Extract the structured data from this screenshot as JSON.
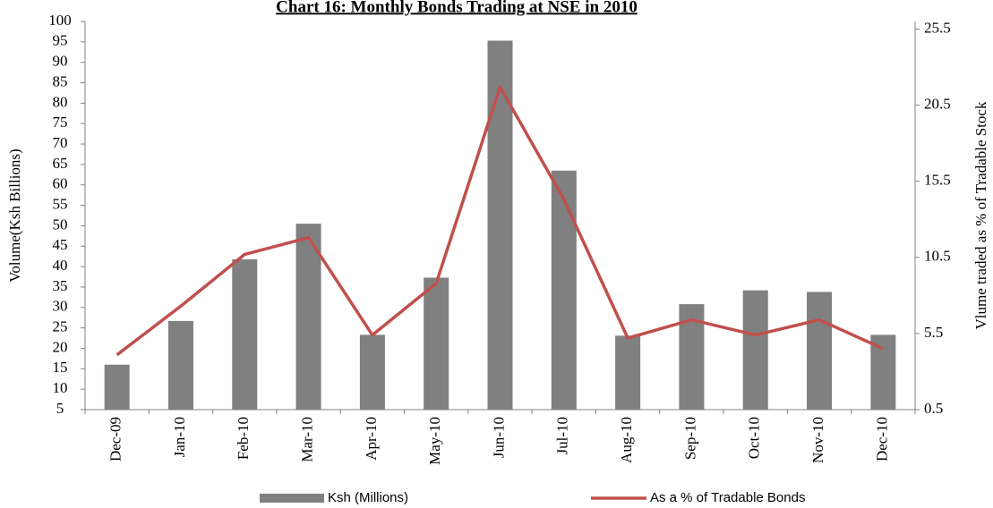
{
  "chart_data": {
    "type": "bar_line",
    "title": "Chart 16: Monthly Bonds Trading at  NSE in 2010",
    "y_label": "Volume(Ksh Billions)",
    "y2_label": "Vlume traded as % of Tradable Stock",
    "categories": [
      "Dec-09",
      "Jan-10",
      "Feb-10",
      "Mar-10",
      "Apr-10",
      "May-10",
      "Jun-10",
      "Jul-10",
      "Aug-10",
      "Sep-10",
      "Oct-10",
      "Nov-10",
      "Dec-10"
    ],
    "series": [
      {
        "name": "Ksh (Millions)",
        "type": "bar",
        "color": "#808080",
        "values": [
          16,
          26.7,
          41.8,
          50.5,
          23.3,
          37.3,
          95.3,
          63.5,
          23.1,
          30.8,
          34.2,
          33.8,
          23.3
        ]
      },
      {
        "name": "As a % of Tradable Bonds",
        "type": "line",
        "axis": "y2",
        "color": "#c0504d",
        "values": [
          4.1,
          7.3,
          10.7,
          11.8,
          5.4,
          8.8,
          21.7,
          14.3,
          5.2,
          6.4,
          5.4,
          6.4,
          4.5
        ]
      }
    ],
    "ylim": [
      5,
      100
    ],
    "yticks": [
      5,
      10,
      15,
      20,
      25,
      30,
      35,
      40,
      45,
      50,
      55,
      60,
      65,
      70,
      75,
      80,
      85,
      90,
      95,
      100
    ],
    "y2lim": [
      0.5,
      26
    ],
    "y2ticks": [
      0.5,
      5.5,
      10.5,
      15.5,
      20.5,
      25.5
    ],
    "legend": "bottom"
  }
}
